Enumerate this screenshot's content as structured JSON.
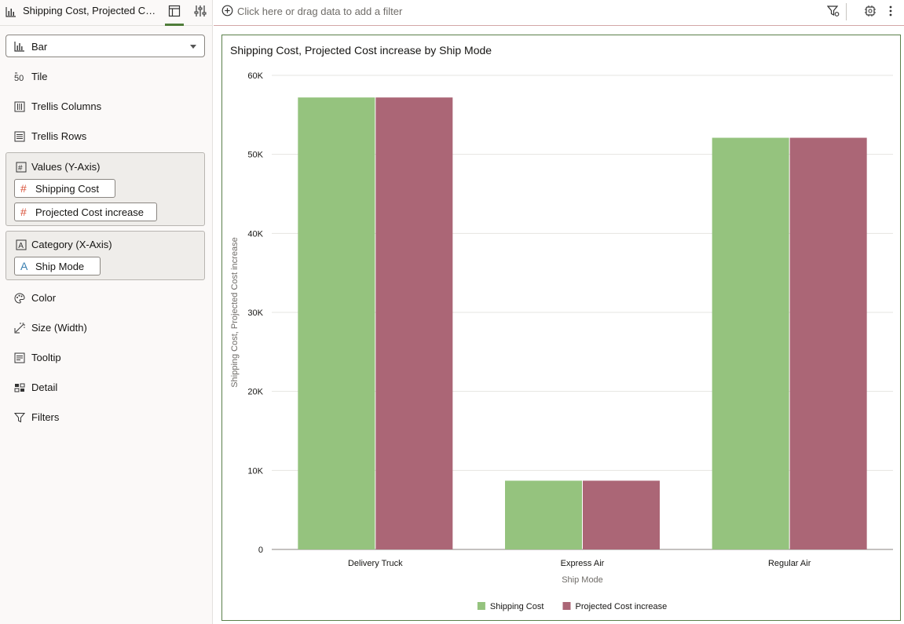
{
  "left_panel": {
    "viz_tab_title": "Shipping Cost, Projected Co...",
    "viz_type": "Bar",
    "items": {
      "tile": "Tile",
      "trellis_columns": "Trellis Columns",
      "trellis_rows": "Trellis Rows",
      "color": "Color",
      "size": "Size (Width)",
      "tooltip": "Tooltip",
      "detail": "Detail",
      "filters": "Filters"
    },
    "values_box": {
      "label": "Values (Y-Axis)",
      "pills": [
        {
          "icon": "#",
          "label": "Shipping Cost"
        },
        {
          "icon": "#",
          "label": "Projected Cost increase"
        }
      ]
    },
    "category_box": {
      "label": "Category (X-Axis)",
      "pills": [
        {
          "icon": "A",
          "label": "Ship Mode"
        }
      ]
    }
  },
  "filter_bar": {
    "placeholder": "Click here or drag data to add a filter"
  },
  "colors": {
    "measure_icon": "#d9533b",
    "attribute_icon": "#3a7fb0",
    "series_1": "#95c37e",
    "series_2": "#ab6676",
    "card_border": "#5a7f4a"
  },
  "chart_data": {
    "type": "bar",
    "title": "Shipping Cost, Projected Cost increase by Ship Mode",
    "xlabel": "Ship Mode",
    "ylabel": "Shipping Cost, Projected Cost increase",
    "categories": [
      "Delivery Truck",
      "Express Air",
      "Regular Air"
    ],
    "series": [
      {
        "name": "Shipping Cost",
        "values": [
          57200,
          8700,
          52100
        ]
      },
      {
        "name": "Projected Cost increase",
        "values": [
          57200,
          8700,
          52100
        ]
      }
    ],
    "ylim": [
      0,
      60000
    ],
    "yticks": [
      {
        "value": 0,
        "label": "0"
      },
      {
        "value": 10000,
        "label": "10K"
      },
      {
        "value": 20000,
        "label": "20K"
      },
      {
        "value": 30000,
        "label": "30K"
      },
      {
        "value": 40000,
        "label": "40K"
      },
      {
        "value": 50000,
        "label": "50K"
      },
      {
        "value": 60000,
        "label": "60K"
      }
    ],
    "grid": true,
    "legend": "bottom"
  }
}
